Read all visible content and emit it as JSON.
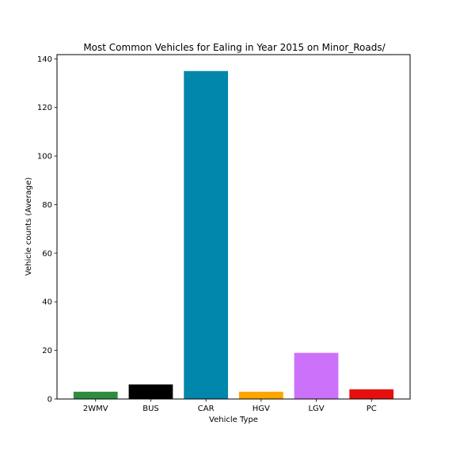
{
  "chart_data": {
    "type": "bar",
    "title": "Most Common Vehicles for Ealing in Year 2015 on Minor_Roads/",
    "xlabel": "Vehicle Type",
    "ylabel": "Vehicle counts (Average)",
    "categories": [
      "2WMV",
      "BUS",
      "CAR",
      "HGV",
      "LGV",
      "PC"
    ],
    "values": [
      3,
      6,
      135,
      3,
      19,
      4
    ],
    "colors": [
      "#2e8b40",
      "#000000",
      "#0087ab",
      "#ffa500",
      "#cc72fa",
      "#e60f0e"
    ],
    "ylim": [
      0,
      141.75
    ],
    "yticks": [
      0,
      20,
      40,
      60,
      80,
      100,
      120,
      140
    ],
    "grid": false,
    "legend": "none"
  }
}
